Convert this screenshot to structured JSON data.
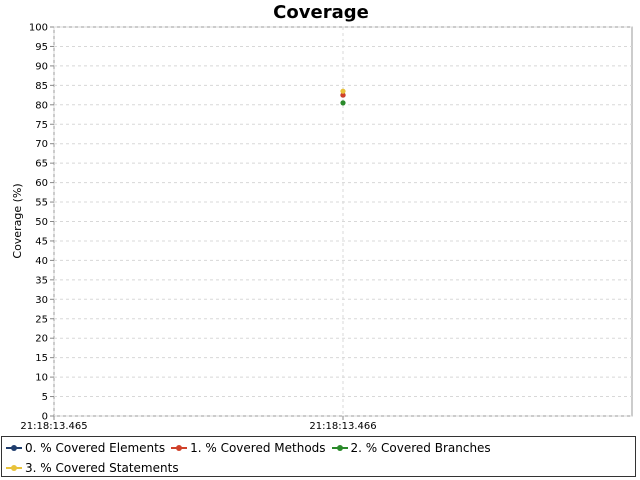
{
  "chart_data": {
    "type": "scatter",
    "title": "Coverage",
    "xlabel": "",
    "ylabel": "Coverage (%)",
    "ylim": [
      0,
      100
    ],
    "yticks": [
      0,
      5,
      10,
      15,
      20,
      25,
      30,
      35,
      40,
      45,
      50,
      55,
      60,
      65,
      70,
      75,
      80,
      85,
      90,
      95,
      100
    ],
    "xticks": [
      "21:18:13.465",
      "21:18:13.466"
    ],
    "grid": true,
    "legend_position": "bottom",
    "series": [
      {
        "name": "0. % Covered Elements",
        "color": "#1f3d6e",
        "x": [
          "21:18:13.466"
        ],
        "y": [
          82.5
        ]
      },
      {
        "name": "1. % Covered Methods",
        "color": "#d0412a",
        "x": [
          "21:18:13.466"
        ],
        "y": [
          82.5
        ]
      },
      {
        "name": "2. % Covered Branches",
        "color": "#2a8a2a",
        "x": [
          "21:18:13.466"
        ],
        "y": [
          80.5
        ]
      },
      {
        "name": "3. % Covered Statements",
        "color": "#e8c23a",
        "x": [
          "21:18:13.466"
        ],
        "y": [
          83.5
        ]
      }
    ]
  }
}
